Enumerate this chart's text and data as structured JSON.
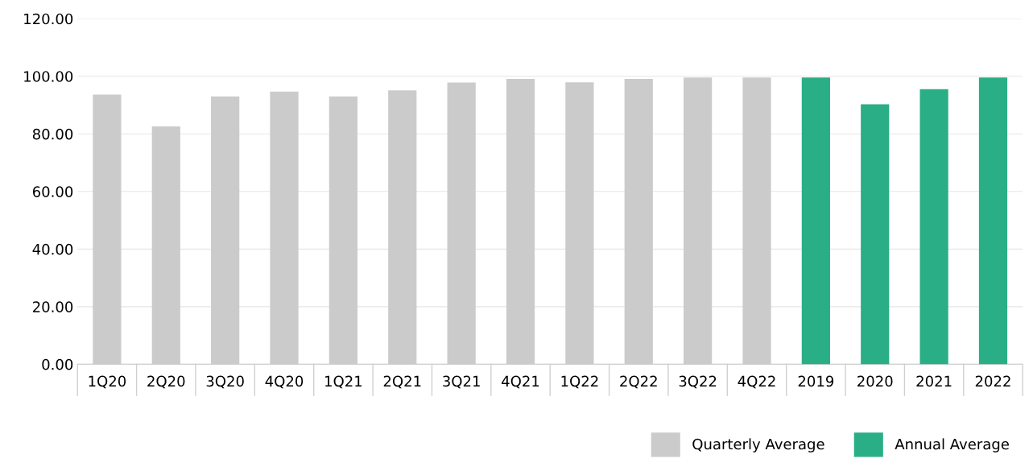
{
  "chart_data": {
    "type": "bar",
    "categories": [
      "1Q20",
      "2Q20",
      "3Q20",
      "4Q20",
      "1Q21",
      "2Q21",
      "3Q21",
      "4Q21",
      "1Q22",
      "2Q22",
      "3Q22",
      "4Q22",
      "2019",
      "2020",
      "2021",
      "2022"
    ],
    "series": [
      {
        "name": "Quarterly Average",
        "color": "#cbcbcb",
        "values": [
          93.6,
          82.6,
          93.0,
          94.7,
          93.0,
          95.1,
          97.8,
          99.1,
          97.9,
          99.1,
          99.6,
          99.6,
          null,
          null,
          null,
          null
        ]
      },
      {
        "name": "Annual Average",
        "color": "#2aae86",
        "values": [
          null,
          null,
          null,
          null,
          null,
          null,
          null,
          null,
          null,
          null,
          null,
          null,
          99.6,
          90.3,
          95.5,
          99.6
        ]
      }
    ],
    "ylim": [
      0,
      120
    ],
    "yticks": [
      {
        "value": 0,
        "label": "0.00"
      },
      {
        "value": 20,
        "label": "20.00"
      },
      {
        "value": 40,
        "label": "40.00"
      },
      {
        "value": 60,
        "label": "60.00"
      },
      {
        "value": 80,
        "label": "80.00"
      },
      {
        "value": 100,
        "label": "100.00"
      },
      {
        "value": 120,
        "label": "120.00"
      }
    ],
    "grid": "y",
    "legend": "bottom right"
  }
}
